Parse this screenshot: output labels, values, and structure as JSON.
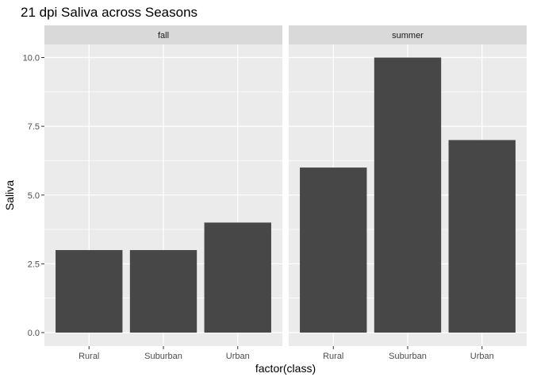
{
  "chart_data": {
    "type": "bar",
    "title": "21 dpi Saliva across Seasons",
    "xlabel": "factor(class)",
    "ylabel": "Saliva",
    "ylim": [
      0,
      10.5
    ],
    "y_ticks": [
      "0.0",
      "2.5",
      "5.0",
      "7.5",
      "10.0"
    ],
    "y_tick_values": [
      0,
      2.5,
      5,
      7.5,
      10
    ],
    "categories": [
      "Rural",
      "Suburban",
      "Urban"
    ],
    "bar_color": "#474747",
    "panel_background": "#ebebeb",
    "strip_background": "#d9d9d9",
    "grid_color": "#ffffff",
    "facets": [
      {
        "label": "fall",
        "values": [
          3,
          3,
          4
        ]
      },
      {
        "label": "summer",
        "values": [
          6,
          10,
          7
        ]
      }
    ]
  }
}
